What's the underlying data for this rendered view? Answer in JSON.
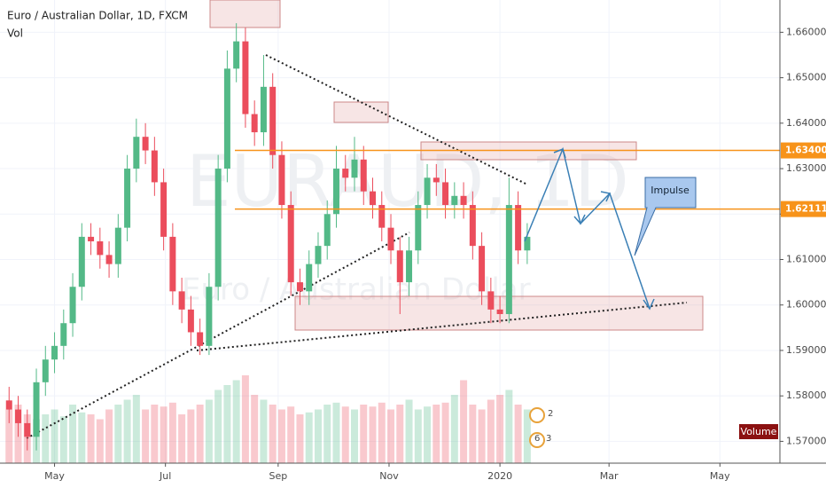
{
  "chart_data": {
    "type": "candlestick",
    "title": "Euro / Australian Dollar, 1D, FXCM",
    "subtitle": "Vol",
    "watermark": "EURAUD, 1D",
    "watermark_subtitle": "Euro / Australian Dollar",
    "annotation": "Impulse",
    "volume_label": "Volume",
    "events": [
      "2",
      "6",
      "3"
    ],
    "up_color": "#53b987",
    "down_color": "#eb4d5c",
    "x": [
      -25,
      -20,
      -15,
      -10,
      -5,
      0,
      5,
      10,
      15,
      20,
      25,
      30,
      35,
      40,
      45,
      50,
      55,
      60,
      65,
      70,
      75,
      80,
      85,
      90,
      95,
      100,
      105,
      110,
      115,
      120,
      125,
      130,
      135,
      140,
      145,
      150,
      155,
      160,
      165,
      170,
      175,
      180,
      185,
      190,
      195,
      200,
      205,
      210,
      215,
      220,
      225,
      230,
      235,
      240,
      245,
      250,
      255,
      260
    ],
    "open": [
      1.579,
      1.577,
      1.574,
      1.571,
      1.583,
      1.588,
      1.591,
      1.596,
      1.604,
      1.615,
      1.614,
      1.611,
      1.609,
      1.617,
      1.63,
      1.637,
      1.634,
      1.627,
      1.615,
      1.603,
      1.599,
      1.594,
      1.591,
      1.604,
      1.63,
      1.652,
      1.658,
      1.642,
      1.638,
      1.648,
      1.633,
      1.622,
      1.605,
      1.603,
      1.609,
      1.613,
      1.62,
      1.63,
      1.628,
      1.632,
      1.625,
      1.622,
      1.617,
      1.612,
      1.605,
      1.612,
      1.622,
      1.628,
      1.627,
      1.622,
      1.624,
      1.622,
      1.613,
      1.603,
      1.599,
      1.598,
      1.622,
      1.612
    ],
    "high": [
      1.582,
      1.58,
      1.577,
      1.586,
      1.591,
      1.594,
      1.599,
      1.607,
      1.618,
      1.618,
      1.617,
      1.614,
      1.62,
      1.633,
      1.641,
      1.64,
      1.637,
      1.63,
      1.618,
      1.606,
      1.602,
      1.597,
      1.607,
      1.633,
      1.656,
      1.662,
      1.661,
      1.645,
      1.655,
      1.651,
      1.636,
      1.625,
      1.608,
      1.612,
      1.616,
      1.623,
      1.635,
      1.633,
      1.637,
      1.635,
      1.628,
      1.625,
      1.62,
      1.615,
      1.615,
      1.625,
      1.631,
      1.631,
      1.63,
      1.627,
      1.627,
      1.625,
      1.616,
      1.606,
      1.602,
      1.628,
      1.625,
      1.618
    ],
    "low": [
      1.574,
      1.571,
      1.568,
      1.568,
      1.58,
      1.585,
      1.588,
      1.593,
      1.601,
      1.611,
      1.608,
      1.606,
      1.606,
      1.614,
      1.627,
      1.631,
      1.624,
      1.612,
      1.6,
      1.596,
      1.591,
      1.589,
      1.589,
      1.601,
      1.627,
      1.649,
      1.639,
      1.635,
      1.635,
      1.63,
      1.619,
      1.602,
      1.6,
      1.6,
      1.606,
      1.61,
      1.617,
      1.625,
      1.625,
      1.622,
      1.619,
      1.614,
      1.609,
      1.598,
      1.602,
      1.609,
      1.619,
      1.624,
      1.619,
      1.619,
      1.619,
      1.61,
      1.6,
      1.596,
      1.596,
      1.596,
      1.609,
      1.609
    ],
    "close": [
      1.577,
      1.574,
      1.571,
      1.583,
      1.588,
      1.591,
      1.596,
      1.604,
      1.615,
      1.614,
      1.611,
      1.609,
      1.617,
      1.63,
      1.637,
      1.634,
      1.627,
      1.615,
      1.603,
      1.599,
      1.594,
      1.591,
      1.604,
      1.63,
      1.652,
      1.658,
      1.642,
      1.638,
      1.648,
      1.633,
      1.622,
      1.605,
      1.603,
      1.609,
      1.613,
      1.62,
      1.63,
      1.628,
      1.632,
      1.625,
      1.622,
      1.617,
      1.612,
      1.605,
      1.612,
      1.622,
      1.628,
      1.627,
      1.622,
      1.624,
      1.622,
      1.613,
      1.603,
      1.599,
      1.598,
      1.622,
      1.612,
      1.615
    ],
    "volume": [
      55,
      60,
      50,
      45,
      50,
      55,
      48,
      60,
      52,
      50,
      45,
      55,
      60,
      65,
      70,
      55,
      60,
      58,
      62,
      50,
      55,
      60,
      65,
      75,
      80,
      85,
      90,
      70,
      65,
      60,
      55,
      58,
      50,
      52,
      55,
      60,
      62,
      58,
      55,
      60,
      58,
      62,
      55,
      60,
      65,
      55,
      58,
      60,
      62,
      70,
      85,
      60,
      55,
      65,
      70,
      75,
      60,
      55
    ],
    "volume_ylim": [
      0,
      100
    ],
    "xlim": [
      -30,
      399
    ],
    "xticks": [
      {
        "value": 0,
        "label": "May"
      },
      {
        "value": 61,
        "label": "Jul"
      },
      {
        "value": 123,
        "label": "Sep"
      },
      {
        "value": 184,
        "label": "Nov"
      },
      {
        "value": 245,
        "label": "2020"
      },
      {
        "value": 305,
        "label": "Mar"
      },
      {
        "value": 366,
        "label": "May"
      }
    ],
    "ylim": [
      1.5652,
      1.6671
    ],
    "yticks": [
      {
        "value": 1.57,
        "label": "1.57000"
      },
      {
        "value": 1.58,
        "label": "1.58000"
      },
      {
        "value": 1.59,
        "label": "1.59000"
      },
      {
        "value": 1.6,
        "label": "1.60000"
      },
      {
        "value": 1.61,
        "label": "1.61000"
      },
      {
        "value": 1.62,
        "label": "1.62000"
      },
      {
        "value": 1.63,
        "label": "1.63000"
      },
      {
        "value": 1.64,
        "label": "1.64000"
      },
      {
        "value": 1.65,
        "label": "1.65000"
      },
      {
        "value": 1.66,
        "label": "1.66000"
      }
    ],
    "levels": [
      {
        "value": 1.634,
        "label": "1.63400"
      },
      {
        "value": 1.62111,
        "label": "1.62111"
      }
    ],
    "level_color": "#f7931a",
    "grid": true
  }
}
